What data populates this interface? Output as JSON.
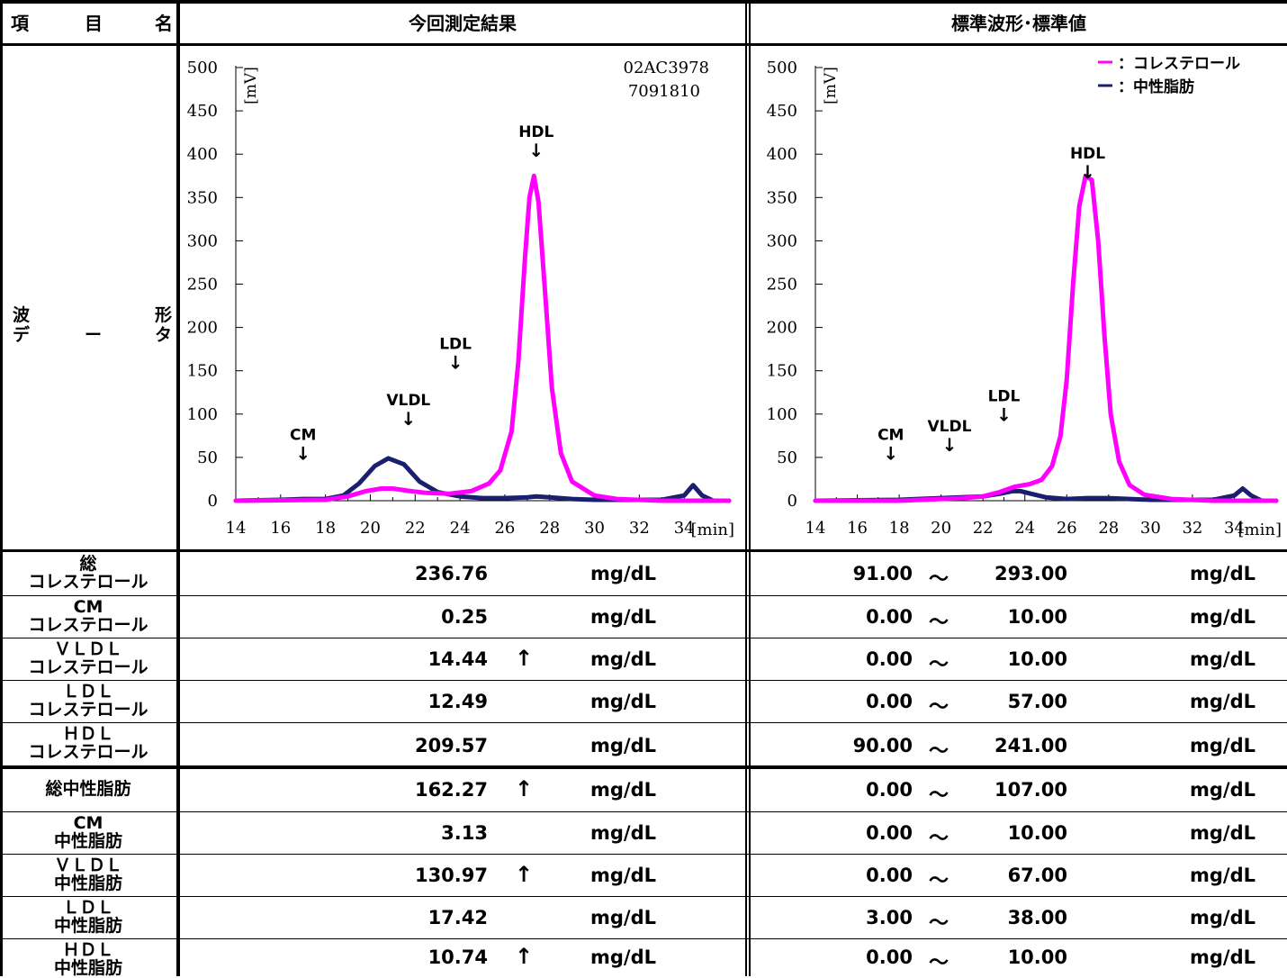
{
  "header": {
    "item_label_1": "項",
    "item_label_2": "目",
    "item_label_3": "名",
    "current_title": "今回測定結果",
    "standard_title": "標準波形･標準値"
  },
  "waveform_label": {
    "c1": "波",
    "c2": "形",
    "c3": "デ",
    "c4": "ー",
    "c5": "タ"
  },
  "chart_data": [
    {
      "type": "line",
      "panel": "current",
      "annotations": {
        "id1": "02AC3978",
        "id2": "7091810"
      },
      "ylabel": "[mV]",
      "xlabel": "[min]",
      "xlim": [
        14,
        36
      ],
      "ylim": [
        0,
        500
      ],
      "x_ticks": [
        14,
        16,
        18,
        20,
        22,
        24,
        26,
        28,
        30,
        32,
        34
      ],
      "y_ticks": [
        0,
        50,
        100,
        150,
        200,
        250,
        300,
        350,
        400,
        450,
        500
      ],
      "peak_labels": [
        {
          "label": "CM",
          "x": 17.0,
          "y": 70
        },
        {
          "label": "VLDL",
          "x": 21.7,
          "y": 110
        },
        {
          "label": "LDL",
          "x": 23.8,
          "y": 175
        },
        {
          "label": "HDL",
          "x": 27.4,
          "y": 420
        }
      ],
      "series": [
        {
          "key": "cholesterol",
          "color": "#ff00ff",
          "x": [
            14,
            18,
            19,
            19.8,
            20.5,
            21,
            21.8,
            22.5,
            23.5,
            24.5,
            25.3,
            25.8,
            26.3,
            26.6,
            26.9,
            27.1,
            27.3,
            27.5,
            27.8,
            28.1,
            28.5,
            29,
            30,
            31,
            33,
            36
          ],
          "y": [
            0,
            1,
            5,
            11,
            14,
            14,
            11,
            9,
            8,
            11,
            20,
            35,
            80,
            160,
            280,
            350,
            375,
            345,
            240,
            130,
            55,
            22,
            6,
            2,
            0,
            0
          ]
        },
        {
          "key": "triglyceride",
          "color": "#1a1f6e",
          "x": [
            14,
            16,
            17,
            18,
            18.8,
            19.5,
            20.2,
            20.8,
            21.5,
            22.2,
            23,
            24,
            25,
            26,
            27,
            27.4,
            28,
            29,
            30,
            33,
            34.0,
            34.4,
            34.8,
            35.3,
            36
          ],
          "y": [
            0,
            1,
            2,
            2,
            6,
            20,
            40,
            49,
            42,
            22,
            10,
            5,
            3,
            3,
            4,
            5,
            4,
            2,
            1,
            1,
            6,
            18,
            6,
            0,
            0
          ]
        }
      ]
    },
    {
      "type": "line",
      "panel": "standard",
      "ylabel": "[mV]",
      "xlabel": "[min]",
      "xlim": [
        14,
        36
      ],
      "ylim": [
        0,
        500
      ],
      "x_ticks": [
        14,
        16,
        18,
        20,
        22,
        24,
        26,
        28,
        30,
        32,
        34
      ],
      "y_ticks": [
        0,
        50,
        100,
        150,
        200,
        250,
        300,
        350,
        400,
        450,
        500
      ],
      "legend": {
        "placement": "top-right",
        "items": [
          {
            "label": "：コレステロール",
            "color": "#ff00ff"
          },
          {
            "label": "：中性脂肪",
            "color": "#1a1f6e"
          }
        ]
      },
      "peak_labels": [
        {
          "label": "CM",
          "x": 17.6,
          "y": 70
        },
        {
          "label": "VLDL",
          "x": 20.4,
          "y": 80
        },
        {
          "label": "LDL",
          "x": 23.0,
          "y": 115
        },
        {
          "label": "HDL",
          "x": 27.0,
          "y": 395
        }
      ],
      "series": [
        {
          "key": "cholesterol",
          "color": "#ff00ff",
          "x": [
            14,
            18,
            20,
            21,
            22,
            22.8,
            23.5,
            24.2,
            24.8,
            25.3,
            25.7,
            26.0,
            26.3,
            26.6,
            26.9,
            27.2,
            27.5,
            27.8,
            28.1,
            28.5,
            29,
            29.7,
            31,
            33,
            36
          ],
          "y": [
            0,
            0,
            2,
            3,
            5,
            10,
            16,
            19,
            24,
            40,
            75,
            140,
            250,
            340,
            375,
            370,
            300,
            190,
            100,
            45,
            18,
            7,
            2,
            0,
            0
          ]
        },
        {
          "key": "triglyceride",
          "color": "#1a1f6e",
          "x": [
            14,
            18,
            20,
            22,
            22.8,
            23.4,
            23.8,
            24.3,
            25,
            26,
            27,
            28,
            29,
            30,
            33,
            34.0,
            34.4,
            34.8,
            35.3,
            36
          ],
          "y": [
            0,
            1,
            3,
            5,
            8,
            11,
            11,
            8,
            4,
            2,
            3,
            3,
            2,
            1,
            1,
            6,
            14,
            6,
            0,
            0
          ]
        }
      ]
    }
  ],
  "unit": "mg/dL",
  "tilde": "～",
  "flag_high": "↑",
  "rows": [
    {
      "l1": "総",
      "l2": "コレステロール",
      "value": "236.76",
      "flag": "",
      "low": "91.00",
      "high": "293.00"
    },
    {
      "l1": "CM",
      "l2": "コレステロール",
      "value": "0.25",
      "flag": "",
      "low": "0.00",
      "high": "10.00"
    },
    {
      "l1": "ＶＬＤＬ",
      "l2": "コレステロール",
      "value": "14.44",
      "flag": "↑",
      "low": "0.00",
      "high": "10.00"
    },
    {
      "l1": "ＬＤＬ",
      "l2": "コレステロール",
      "value": "12.49",
      "flag": "",
      "low": "0.00",
      "high": "57.00"
    },
    {
      "l1": "ＨＤＬ",
      "l2": "コレステロール",
      "value": "209.57",
      "flag": "",
      "low": "90.00",
      "high": "241.00"
    },
    {
      "l1": "総中性脂肪",
      "l2": "",
      "value": "162.27",
      "flag": "↑",
      "low": "0.00",
      "high": "107.00"
    },
    {
      "l1": "CM",
      "l2": "中性脂肪",
      "value": "3.13",
      "flag": "",
      "low": "0.00",
      "high": "10.00"
    },
    {
      "l1": "ＶＬＤＬ",
      "l2": "中性脂肪",
      "value": "130.97",
      "flag": "↑",
      "low": "0.00",
      "high": "67.00"
    },
    {
      "l1": "ＬＤＬ",
      "l2": "中性脂肪",
      "value": "17.42",
      "flag": "",
      "low": "3.00",
      "high": "38.00"
    },
    {
      "l1": "ＨＤＬ",
      "l2": "中性脂肪",
      "value": "10.74",
      "flag": "↑",
      "low": "0.00",
      "high": "10.00"
    }
  ]
}
